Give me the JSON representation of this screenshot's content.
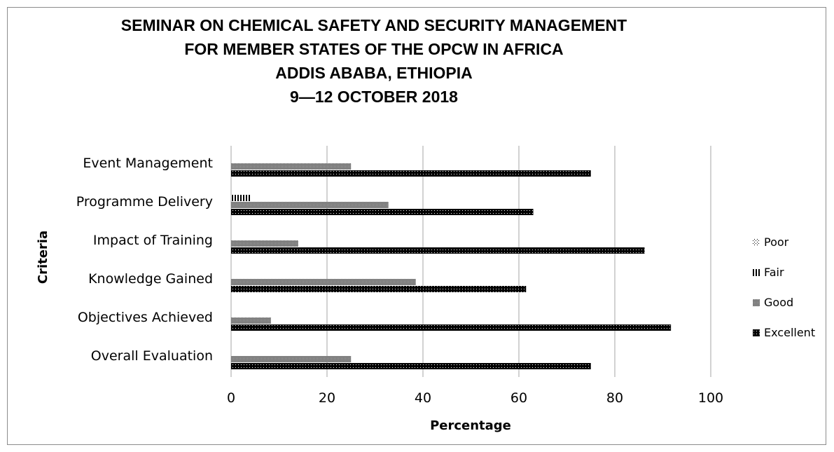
{
  "chart_data": {
    "type": "bar",
    "orientation": "horizontal",
    "title": [
      "SEMINAR ON CHEMICAL SAFETY AND SECURITY MANAGEMENT",
      "FOR MEMBER STATES OF THE OPCW IN AFRICA",
      "ADDIS ABABA, ETHIOPIA",
      "9—12 OCTOBER 2018"
    ],
    "xlabel": "Percentage",
    "ylabel": "Criteria",
    "xlim": [
      0,
      100
    ],
    "xticks": [
      0,
      20,
      40,
      60,
      80,
      100
    ],
    "grid": true,
    "legend_position": "right",
    "categories": [
      "Event Management",
      "Programme Delivery",
      "Impact of Training",
      "Knowledge Gained",
      "Objectives Achieved",
      "Overall Evaluation"
    ],
    "series": [
      {
        "name": "Poor",
        "pattern": "dots",
        "values": [
          0,
          0,
          0,
          0,
          0,
          0
        ]
      },
      {
        "name": "Fair",
        "pattern": "vertical-stripes",
        "values": [
          0,
          4.2,
          0,
          0,
          0,
          0
        ]
      },
      {
        "name": "Good",
        "pattern": "grey-dense",
        "values": [
          25,
          32.8,
          14,
          38.5,
          8.3,
          25
        ]
      },
      {
        "name": "Excellent",
        "pattern": "black-dots",
        "values": [
          75,
          63,
          86.2,
          61.5,
          91.7,
          75
        ]
      }
    ],
    "colors": {
      "gridline": "#a6a6a6",
      "frame": "#8c8c8c",
      "excellent": "#000000",
      "good": "#808080"
    }
  }
}
